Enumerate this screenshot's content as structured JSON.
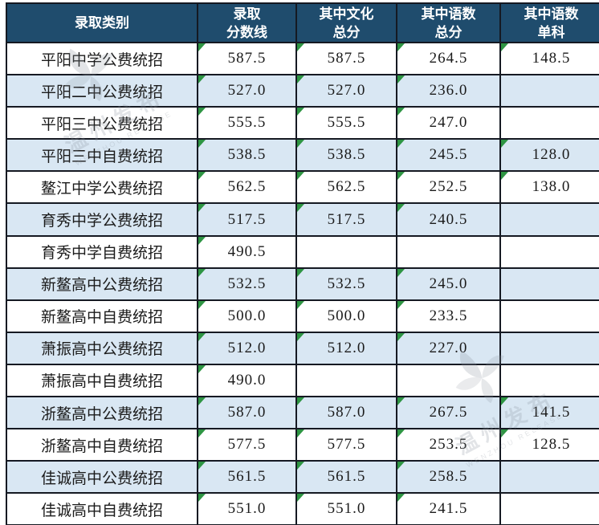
{
  "chart_data": {
    "type": "table",
    "columns": [
      {
        "title": "录取类别",
        "lines": [
          "录取类别"
        ]
      },
      {
        "title": "录取分数线",
        "lines": [
          "录取",
          "分数线"
        ]
      },
      {
        "title": "其中文化总分",
        "lines": [
          "其中文化",
          "总分"
        ]
      },
      {
        "title": "其中语数总分",
        "lines": [
          "其中语数",
          "总分"
        ]
      },
      {
        "title": "其中语数单科",
        "lines": [
          "其中语数",
          "单科"
        ]
      }
    ],
    "rows": [
      {
        "category": "平阳中学公费统招",
        "values": [
          "587.5",
          "587.5",
          "264.5",
          "148.5"
        ]
      },
      {
        "category": "平阳二中公费统招",
        "values": [
          "527.0",
          "527.0",
          "236.0",
          ""
        ]
      },
      {
        "category": "平阳三中公费统招",
        "values": [
          "555.5",
          "555.5",
          "247.0",
          ""
        ]
      },
      {
        "category": "平阳三中自费统招",
        "values": [
          "538.5",
          "538.5",
          "245.5",
          "128.0"
        ]
      },
      {
        "category": "鳌江中学公费统招",
        "values": [
          "562.5",
          "562.5",
          "252.5",
          "138.0"
        ]
      },
      {
        "category": "育秀中学公费统招",
        "values": [
          "517.5",
          "517.5",
          "240.5",
          ""
        ]
      },
      {
        "category": "育秀中学自费统招",
        "values": [
          "490.5",
          "",
          "",
          ""
        ]
      },
      {
        "category": "新鳌高中公费统招",
        "values": [
          "532.5",
          "532.5",
          "245.0",
          ""
        ]
      },
      {
        "category": "新鳌高中自费统招",
        "values": [
          "500.0",
          "500.0",
          "233.5",
          ""
        ]
      },
      {
        "category": "萧振高中公费统招",
        "values": [
          "512.0",
          "512.0",
          "227.0",
          ""
        ]
      },
      {
        "category": "萧振高中自费统招",
        "values": [
          "490.0",
          "",
          "",
          ""
        ]
      },
      {
        "category": "浙鳌高中公费统招",
        "values": [
          "587.0",
          "587.0",
          "267.5",
          "141.5"
        ]
      },
      {
        "category": "浙鳌高中自费统招",
        "values": [
          "577.5",
          "577.5",
          "253.5",
          "128.5"
        ]
      },
      {
        "category": "佳诚高中公费统招",
        "values": [
          "561.5",
          "561.5",
          "258.5",
          ""
        ]
      },
      {
        "category": "佳诚高中自费统招",
        "values": [
          "551.0",
          "551.0",
          "241.5",
          ""
        ]
      }
    ]
  },
  "watermark": {
    "text": "温州发布",
    "subtext": "WENZHOU RELEASE"
  },
  "colors": {
    "header_bg": "#1F4C6D",
    "row_alt_bg": "#D9E7F3",
    "border": "#151922",
    "text": "#1B1B1B",
    "marker_green": "#2E9543",
    "watermark": "#8A939D"
  }
}
